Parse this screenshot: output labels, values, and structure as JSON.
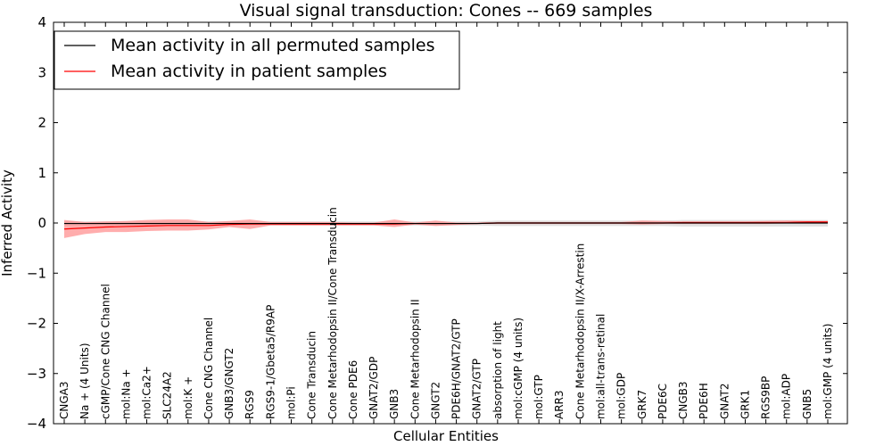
{
  "chart_data": {
    "type": "line",
    "title": "Visual signal transduction: Cones -- 669 samples",
    "xlabel": "Cellular Entities",
    "ylabel": "Inferred Activity",
    "ylim": [
      -4,
      4
    ],
    "yticks": [
      "4",
      "3",
      "2",
      "1",
      "0",
      "−1",
      "−2",
      "−3",
      "−4"
    ],
    "ytick_values": [
      4,
      3,
      2,
      1,
      0,
      -1,
      -2,
      -3,
      -4
    ],
    "grid": false,
    "legend_position": "top-left",
    "categories": [
      "CNGA3",
      "Na + (4 Units)",
      "cGMP/Cone CNG Channel",
      "mol:Na +",
      "mol:Ca2+",
      "SLC24A2",
      "mol:K +",
      "Cone CNG Channel",
      "GNB3/GNGT2",
      "RGS9",
      "RGS9-1/Gbeta5/R9AP",
      "mol:Pi",
      "Cone Transducin",
      "Cone Metarhodopsin II/Cone Transducin",
      "Cone PDE6",
      "GNAT2/GDP",
      "GNB3",
      "Cone Metarhodopsin II",
      "GNGT2",
      "PDE6H/GNAT2/GTP",
      "GNAT2/GTP",
      "absorption of light",
      "mol:cGMP (4 units)",
      "mol:GTP",
      "ARR3",
      "Cone Metarhodopsin II/X-Arrestin",
      "mol:all-trans-retinal",
      "mol:GDP",
      "GRK7",
      "PDE6C",
      "CNGB3",
      "PDE6H",
      "GNAT2",
      "GRK1",
      "RGS9BP",
      "mol:ADP",
      "GNB5",
      "mol:GMP (4 units)"
    ],
    "series": [
      {
        "name": "Mean activity in all permuted samples",
        "color": "#000000",
        "values": [
          -0.01,
          -0.01,
          -0.01,
          -0.01,
          -0.01,
          -0.01,
          -0.01,
          -0.01,
          -0.01,
          -0.01,
          -0.01,
          -0.01,
          -0.01,
          -0.01,
          -0.01,
          -0.01,
          -0.01,
          -0.01,
          -0.01,
          -0.01,
          -0.01,
          0,
          0,
          0,
          0,
          0,
          0,
          0,
          0,
          0,
          0,
          0,
          0,
          0,
          0,
          0,
          0,
          0
        ],
        "lower": [
          -0.05,
          -0.05,
          -0.05,
          -0.05,
          -0.05,
          -0.05,
          -0.05,
          -0.05,
          -0.05,
          -0.05,
          -0.05,
          -0.05,
          -0.05,
          -0.05,
          -0.05,
          -0.05,
          -0.05,
          -0.05,
          -0.05,
          -0.05,
          -0.05,
          -0.06,
          -0.06,
          -0.06,
          -0.06,
          -0.06,
          -0.06,
          -0.06,
          -0.06,
          -0.06,
          -0.07,
          -0.07,
          -0.07,
          -0.07,
          -0.07,
          -0.07,
          -0.07,
          -0.07
        ],
        "upper": [
          0.03,
          0.03,
          0.03,
          0.03,
          0.03,
          0.03,
          0.03,
          0.03,
          0.03,
          0.03,
          0.03,
          0.03,
          0.03,
          0.03,
          0.03,
          0.03,
          0.03,
          0.03,
          0.03,
          0.03,
          0.03,
          0.05,
          0.05,
          0.05,
          0.05,
          0.05,
          0.05,
          0.05,
          0.05,
          0.05,
          0.06,
          0.06,
          0.06,
          0.06,
          0.06,
          0.06,
          0.06,
          0.06
        ]
      },
      {
        "name": "Mean activity in patient samples",
        "color": "#ff0000",
        "band_color": "#ff8a8a",
        "values": [
          -0.12,
          -0.1,
          -0.08,
          -0.07,
          -0.06,
          -0.05,
          -0.05,
          -0.05,
          -0.03,
          -0.02,
          -0.02,
          -0.02,
          -0.02,
          -0.02,
          -0.02,
          -0.02,
          -0.02,
          -0.01,
          -0.01,
          -0.01,
          -0.01,
          0,
          0,
          0,
          0,
          0,
          0,
          0,
          0,
          0,
          0.01,
          0.01,
          0.01,
          0.01,
          0.01,
          0.01,
          0.02,
          0.02
        ],
        "lower": [
          -0.3,
          -0.22,
          -0.18,
          -0.18,
          -0.16,
          -0.15,
          -0.15,
          -0.13,
          -0.08,
          -0.12,
          -0.05,
          -0.05,
          -0.05,
          -0.05,
          -0.05,
          -0.05,
          -0.08,
          -0.03,
          -0.06,
          -0.04,
          -0.02,
          -0.02,
          -0.02,
          -0.02,
          -0.02,
          -0.02,
          -0.02,
          -0.02,
          -0.03,
          -0.02,
          -0.02,
          -0.02,
          -0.02,
          -0.02,
          -0.02,
          -0.01,
          -0.01,
          0
        ],
        "upper": [
          0.06,
          0.02,
          0.03,
          0.04,
          0.06,
          0.07,
          0.07,
          0.02,
          0.04,
          0.07,
          0.02,
          0.02,
          0.02,
          0.02,
          0.01,
          0.01,
          0.07,
          0.01,
          0.05,
          0.01,
          0.01,
          0.02,
          0.02,
          0.02,
          0.02,
          0.02,
          0.02,
          0.02,
          0.05,
          0.04,
          0.03,
          0.03,
          0.03,
          0.03,
          0.04,
          0.05,
          0.04,
          0.04
        ]
      }
    ]
  }
}
